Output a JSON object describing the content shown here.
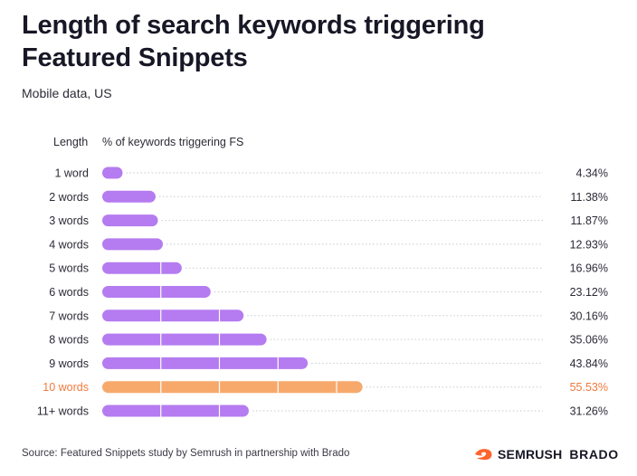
{
  "title": "Length of search keywords triggering Featured Snippets",
  "subtitle": "Mobile data, US",
  "source": "Source: Featured Snippets study by Semrush in partnership with Brado",
  "brand": {
    "semrush": "SEMRUSH",
    "brado": "BRADO"
  },
  "colors": {
    "bar": "#b57bf0",
    "highlight": "#f7a96b",
    "highlight_text": "#f07a3c",
    "label": "#2b2b36",
    "divider": "#ffffff",
    "gridline": "#c9c9d3",
    "semrush_orange": "#ff642d"
  },
  "chart_data": {
    "type": "bar",
    "orientation": "horizontal",
    "header": {
      "category": "Length",
      "value": "% of keywords triggering FS"
    },
    "categories": [
      "1 word",
      "2 words",
      "3 words",
      "4 words",
      "5 words",
      "6 words",
      "7 words",
      "8 words",
      "9 words",
      "10 words",
      "11+ words"
    ],
    "values": [
      4.34,
      11.38,
      11.87,
      12.93,
      16.96,
      23.12,
      30.16,
      35.06,
      43.84,
      55.53,
      31.26
    ],
    "value_labels": [
      "4.34%",
      "11.38%",
      "11.87%",
      "12.93%",
      "16.96%",
      "23.12%",
      "30.16%",
      "35.06%",
      "43.84%",
      "55.53%",
      "31.26%"
    ],
    "highlight_index": 9,
    "bar_dividers_every": 12.5,
    "xlim": [
      0,
      60
    ],
    "grid": "dotted guide line from each bar to its value label"
  }
}
